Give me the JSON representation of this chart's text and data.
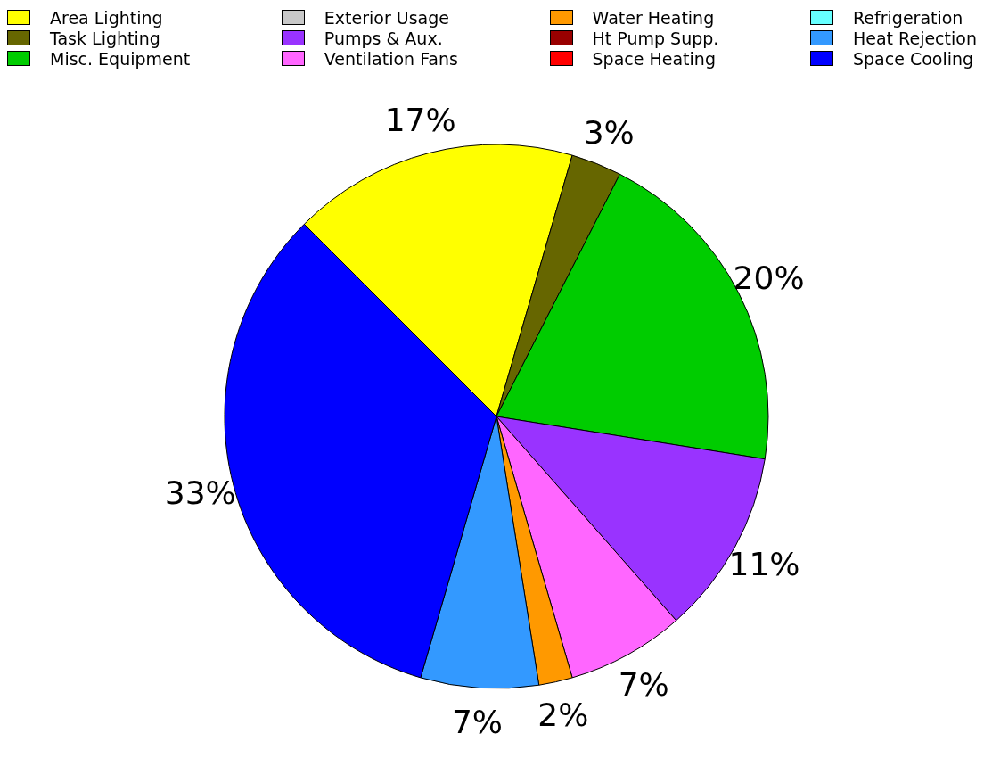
{
  "chart_data": {
    "type": "pie",
    "categories": [
      "Area Lighting",
      "Task Lighting",
      "Misc. Equipment",
      "Exterior Usage",
      "Pumps & Aux.",
      "Ventilation Fans",
      "Water Heating",
      "Ht Pump Supp.",
      "Space Heating",
      "Refrigeration",
      "Heat Rejection",
      "Space Cooling"
    ],
    "values": [
      17,
      3,
      20,
      0,
      11,
      7,
      2,
      0,
      0,
      0,
      7,
      33
    ],
    "colors": [
      "#ffff00",
      "#666600",
      "#00cc00",
      "#c8c8c8",
      "#9933ff",
      "#ff66ff",
      "#ff9900",
      "#990000",
      "#ff0000",
      "#66ffff",
      "#3399ff",
      "#0000ff"
    ],
    "value_labels": [
      "17%",
      "3%",
      "20%",
      null,
      "11%",
      "7%",
      "2%",
      null,
      null,
      null,
      "7%",
      "33%"
    ],
    "legend": "top"
  }
}
